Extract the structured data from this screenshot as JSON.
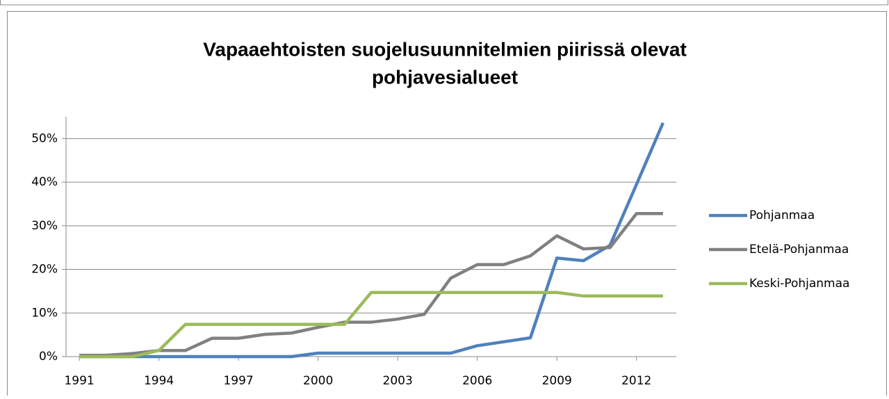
{
  "chart_data": {
    "type": "line",
    "title_lines": [
      "Vapaaehtoisten suojelusuunnitelmien piirissä olevat",
      "pohjavesialueet"
    ],
    "x": [
      1991,
      1992,
      1993,
      1994,
      1995,
      1996,
      1997,
      1998,
      1999,
      2000,
      2001,
      2002,
      2003,
      2004,
      2005,
      2006,
      2007,
      2008,
      2009,
      2010,
      2011,
      2012,
      2013
    ],
    "series": [
      {
        "name": "Pohjanmaa",
        "color": "#4f81bd",
        "values": [
          0,
          0,
          0,
          0,
          0,
          0,
          0,
          0,
          0,
          0.8,
          0.8,
          0.8,
          0.8,
          0.8,
          0.8,
          2.5,
          3.4,
          4.3,
          22.6,
          22,
          25.5,
          39.5,
          53.6
        ]
      },
      {
        "name": "Etelä-Pohjanmaa",
        "color": "#808080",
        "values": [
          0.3,
          0.3,
          0.7,
          1.4,
          1.4,
          4.2,
          4.2,
          5.1,
          5.4,
          6.7,
          7.9,
          7.9,
          8.6,
          9.7,
          18,
          21.1,
          21.1,
          23.1,
          27.7,
          24.7,
          25,
          32.8,
          32.8
        ]
      },
      {
        "name": "Keski-Pohjanmaa",
        "color": "#9bbb59",
        "values": [
          0,
          0,
          0,
          1.4,
          7.4,
          7.4,
          7.4,
          7.4,
          7.4,
          7.4,
          7.4,
          14.7,
          14.7,
          14.7,
          14.7,
          14.7,
          14.7,
          14.7,
          14.7,
          13.9,
          13.9,
          13.9,
          13.9
        ]
      }
    ],
    "xlim": [
      1990.5,
      2013.5
    ],
    "xticks": [
      1991,
      1994,
      1997,
      2000,
      2003,
      2006,
      2009,
      2012
    ],
    "ylim": [
      0,
      55
    ],
    "yticks": [
      {
        "value": 0,
        "label": "0%"
      },
      {
        "value": 10,
        "label": "10%"
      },
      {
        "value": 20,
        "label": "20%"
      },
      {
        "value": 30,
        "label": "30%"
      },
      {
        "value": 40,
        "label": "40%"
      },
      {
        "value": 50,
        "label": "50%"
      }
    ],
    "grid": true,
    "legend": "right"
  }
}
